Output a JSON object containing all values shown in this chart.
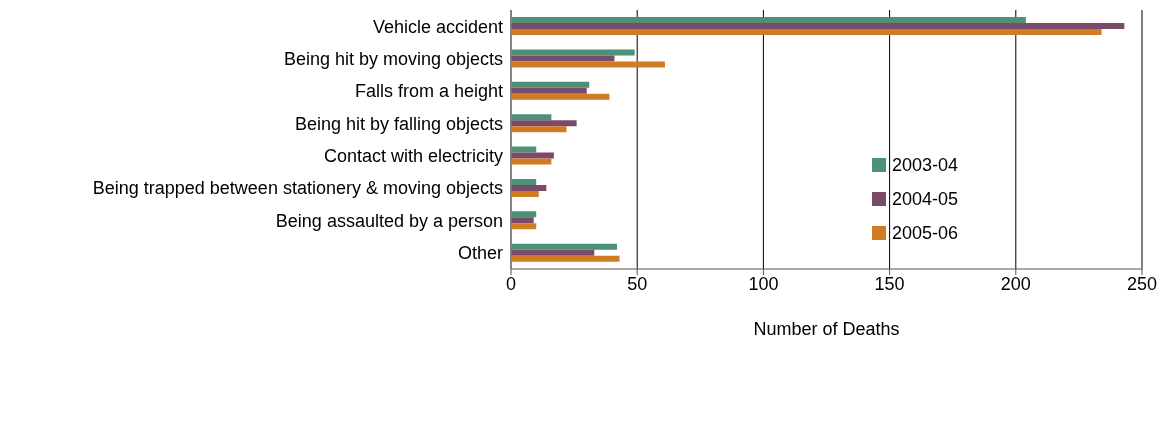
{
  "chart_data": {
    "type": "bar",
    "orientation": "horizontal",
    "xlabel": "Number of Deaths",
    "categories": [
      "Vehicle accident",
      "Being hit by moving objects",
      "Falls from a height",
      "Being hit by falling objects",
      "Contact with electricity",
      "Being trapped between stationery & moving objects",
      "Being assaulted by a person",
      "Other"
    ],
    "series": [
      {
        "name": "2003-04",
        "color": "#4e9179",
        "values": [
          204,
          49,
          31,
          16,
          10,
          10,
          10,
          42
        ]
      },
      {
        "name": "2004-05",
        "color": "#7a4a6b",
        "values": [
          243,
          41,
          30,
          26,
          17,
          14,
          9,
          33
        ]
      },
      {
        "name": "2005-06",
        "color": "#d27b25",
        "values": [
          234,
          61,
          39,
          22,
          16,
          11,
          10,
          43
        ]
      }
    ],
    "xlim": [
      0,
      250
    ],
    "xticks": [
      0,
      50,
      100,
      150,
      200,
      250
    ],
    "grid": "x",
    "legend": "right"
  }
}
